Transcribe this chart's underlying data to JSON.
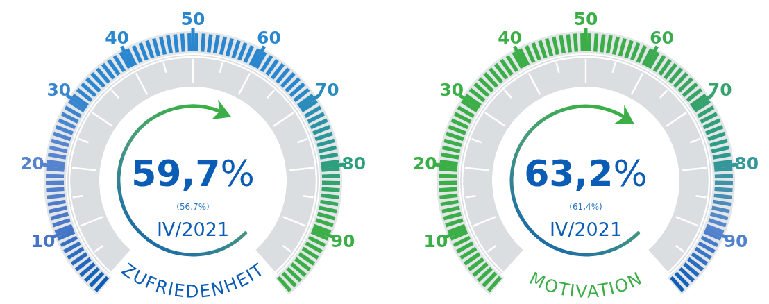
{
  "chart_data": [
    {
      "type": "other",
      "title": "ZUFRIEDENHEIT",
      "values": [
        59.7
      ],
      "value_labels": [
        "59,7%"
      ],
      "annotations": [
        "(56,7%)",
        "IV/2021",
        "10",
        "20",
        "30",
        "40",
        "50",
        "60",
        "70",
        "80",
        "90"
      ]
    },
    {
      "type": "other",
      "title": "MOTIVATION",
      "values": [
        63.2
      ],
      "value_labels": [
        "63,2%"
      ],
      "annotations": [
        "(61,4%)",
        "IV/2021",
        "10",
        "20",
        "30",
        "40",
        "50",
        "60",
        "70",
        "80",
        "90"
      ]
    }
  ]
}
